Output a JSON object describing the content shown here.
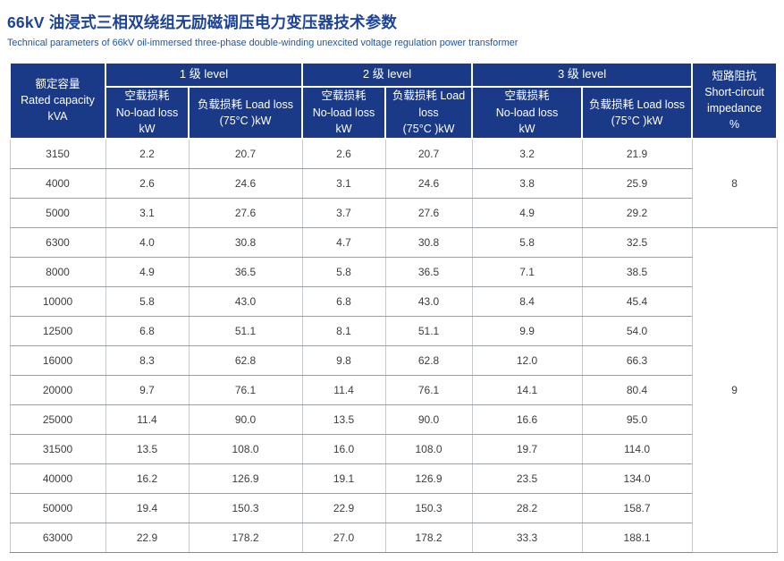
{
  "page": {
    "title": "66kV 油浸式三相双绕组无励磁调压电力变压器技术参数",
    "subtitle": "Technical parameters of 66kV oil-immersed three-phase double-winding unexcited voltage regulation power transformer"
  },
  "table": {
    "header": {
      "rated_capacity": "额定容量\nRated capacity\nkVA",
      "groups": [
        {
          "label": "1 级 level",
          "no_load": "空载损耗\nNo-load loss\nkW",
          "load": "负载损耗 Load loss\n(75°C )kW"
        },
        {
          "label": "2 级 level",
          "no_load": "空载损耗\nNo-load loss\nkW",
          "load": "负载损耗 Load\nloss\n(75°C )kW"
        },
        {
          "label": "3 级 level",
          "no_load": "空载损耗\nNo-load loss\nkW",
          "load": "负载损耗 Load loss\n(75°C )kW"
        }
      ],
      "impedance": "短路阻抗\nShort-circuit\nimpedance\n%"
    },
    "rows": [
      [
        "3150",
        "2.2",
        "20.7",
        "2.6",
        "20.7",
        "3.2",
        "21.9"
      ],
      [
        "4000",
        "2.6",
        "24.6",
        "3.1",
        "24.6",
        "3.8",
        "25.9"
      ],
      [
        "5000",
        "3.1",
        "27.6",
        "3.7",
        "27.6",
        "4.9",
        "29.2"
      ],
      [
        "6300",
        "4.0",
        "30.8",
        "4.7",
        "30.8",
        "5.8",
        "32.5"
      ],
      [
        "8000",
        "4.9",
        "36.5",
        "5.8",
        "36.5",
        "7.1",
        "38.5"
      ],
      [
        "10000",
        "5.8",
        "43.0",
        "6.8",
        "43.0",
        "8.4",
        "45.4"
      ],
      [
        "12500",
        "6.8",
        "51.1",
        "8.1",
        "51.1",
        "9.9",
        "54.0"
      ],
      [
        "16000",
        "8.3",
        "62.8",
        "9.8",
        "62.8",
        "12.0",
        "66.3"
      ],
      [
        "20000",
        "9.7",
        "76.1",
        "11.4",
        "76.1",
        "14.1",
        "80.4"
      ],
      [
        "25000",
        "11.4",
        "90.0",
        "13.5",
        "90.0",
        "16.6",
        "95.0"
      ],
      [
        "31500",
        "13.5",
        "108.0",
        "16.0",
        "108.0",
        "19.7",
        "114.0"
      ],
      [
        "40000",
        "16.2",
        "126.9",
        "19.1",
        "126.9",
        "23.5",
        "134.0"
      ],
      [
        "50000",
        "19.4",
        "150.3",
        "22.9",
        "150.3",
        "28.2",
        "158.7"
      ],
      [
        "63000",
        "22.9",
        "178.2",
        "27.0",
        "178.2",
        "33.3",
        "188.1"
      ]
    ],
    "impedance_groups": [
      {
        "value": "8",
        "rows": 3
      },
      {
        "value": "9",
        "rows": 11
      }
    ]
  },
  "colors": {
    "header_bg": "#1a3a88",
    "header_text": "#ffffff",
    "title_text": "#1d4396",
    "subtitle_text": "#1f55a8"
  }
}
